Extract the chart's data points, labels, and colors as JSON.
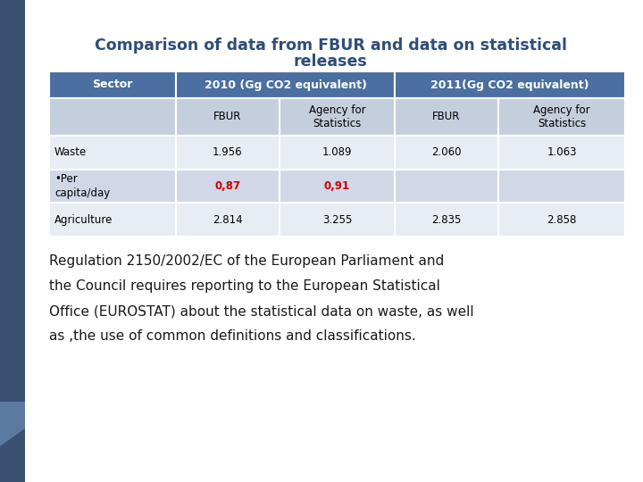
{
  "title_line1": "Comparison of data from FBUR and data on statistical",
  "title_line2": "releases",
  "title_color": "#2E4D7B",
  "background_color": "#FFFFFF",
  "header_bg": "#4A6FA0",
  "header_text_color": "#FFFFFF",
  "subheader_bg": "#C5CEDC",
  "row_colors": [
    "#E8EDF4",
    "#D0D8E8",
    "#E8EDF4"
  ],
  "red_color": "#CC0000",
  "left_bar_color": "#3A5070",
  "subcolumns": [
    "FBUR",
    "Agency for\nStatistics",
    "FBUR",
    "Agency for\nStatistics"
  ],
  "rows": [
    {
      "sector": "Waste",
      "vals": [
        "1.956",
        "1.089",
        "2.060",
        "1.063"
      ],
      "red": [
        false,
        false,
        false,
        false
      ]
    },
    {
      "sector": "•Per\ncapita/day",
      "vals": [
        "0,87",
        "0,91",
        "",
        ""
      ],
      "red": [
        true,
        true,
        false,
        false
      ]
    },
    {
      "sector": "Agriculture",
      "vals": [
        "2.814",
        "3.255",
        "2.835",
        "2.858"
      ],
      "red": [
        false,
        false,
        false,
        false
      ]
    }
  ],
  "paragraph_lines": [
    "Regulation 2150/2002/EC of the European Parliament and",
    "the Council requires reporting to the European Statistical",
    "Office (EUROSTAT) about the statistical data on waste, as well",
    "as ,the use of common definitions and classifications."
  ],
  "paragraph_color": "#1A1A1A"
}
